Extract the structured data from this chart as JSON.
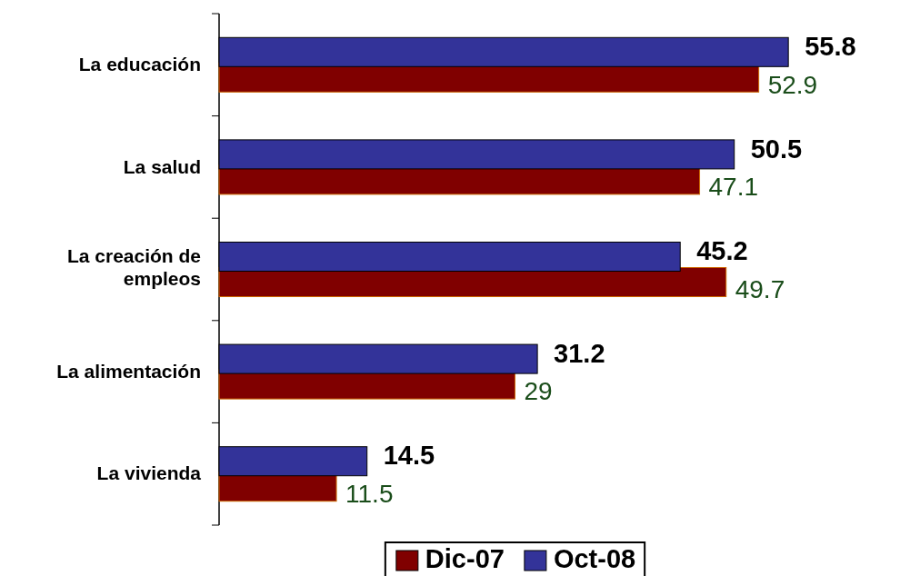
{
  "chart_data": {
    "type": "bar",
    "orientation": "horizontal",
    "categories": [
      "La educación",
      "La salud",
      "La creación de empleos",
      "La alimentación",
      "La vivienda"
    ],
    "series": [
      {
        "name": "Dic-07",
        "color": "#800000",
        "values": [
          52.9,
          47.1,
          49.7,
          29,
          11.5
        ]
      },
      {
        "name": "Oct-08",
        "color": "#333399",
        "values": [
          55.8,
          50.5,
          45.2,
          31.2,
          14.5
        ]
      }
    ],
    "data_labels": true,
    "legend": "bottom"
  }
}
